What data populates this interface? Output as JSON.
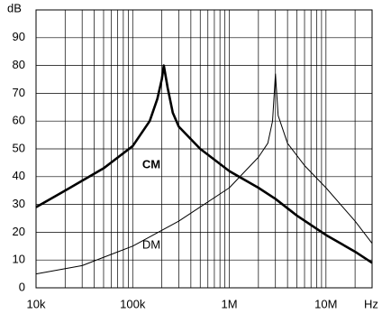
{
  "chart_data": {
    "type": "line",
    "x_label": "Hz",
    "y_label": "dB",
    "log_x": true,
    "grid": true,
    "xlim": [
      10000,
      30000000
    ],
    "xticks": [
      {
        "value": 10000,
        "label": "10k"
      },
      {
        "value": 100000,
        "label": "100k"
      },
      {
        "value": 1000000,
        "label": "1M"
      },
      {
        "value": 10000000,
        "label": "10M"
      }
    ],
    "ylim": [
      0,
      100
    ],
    "yticks": [
      0,
      10,
      20,
      30,
      40,
      50,
      60,
      70,
      80,
      90
    ],
    "series": [
      {
        "name": "CM",
        "color": "#000000",
        "x": [
          10000,
          20000,
          50000,
          100000,
          150000,
          180000,
          200000,
          210000,
          230000,
          260000,
          300000,
          500000,
          1000000,
          2000000,
          3000000,
          5000000,
          10000000,
          20000000,
          30000000
        ],
        "values": [
          29,
          35,
          43,
          51,
          60,
          68,
          75,
          80,
          72,
          63,
          58,
          50,
          42,
          36,
          32,
          26,
          19,
          13,
          9
        ]
      },
      {
        "name": "DM",
        "color": "#000000",
        "x": [
          10000,
          30000,
          100000,
          300000,
          1000000,
          2000000,
          2500000,
          2800000,
          3000000,
          3200000,
          4000000,
          6000000,
          10000000,
          20000000,
          30000000
        ],
        "values": [
          5,
          8,
          15,
          24,
          36,
          47,
          52,
          60,
          77,
          62,
          52,
          44,
          36,
          24,
          16
        ]
      }
    ]
  }
}
